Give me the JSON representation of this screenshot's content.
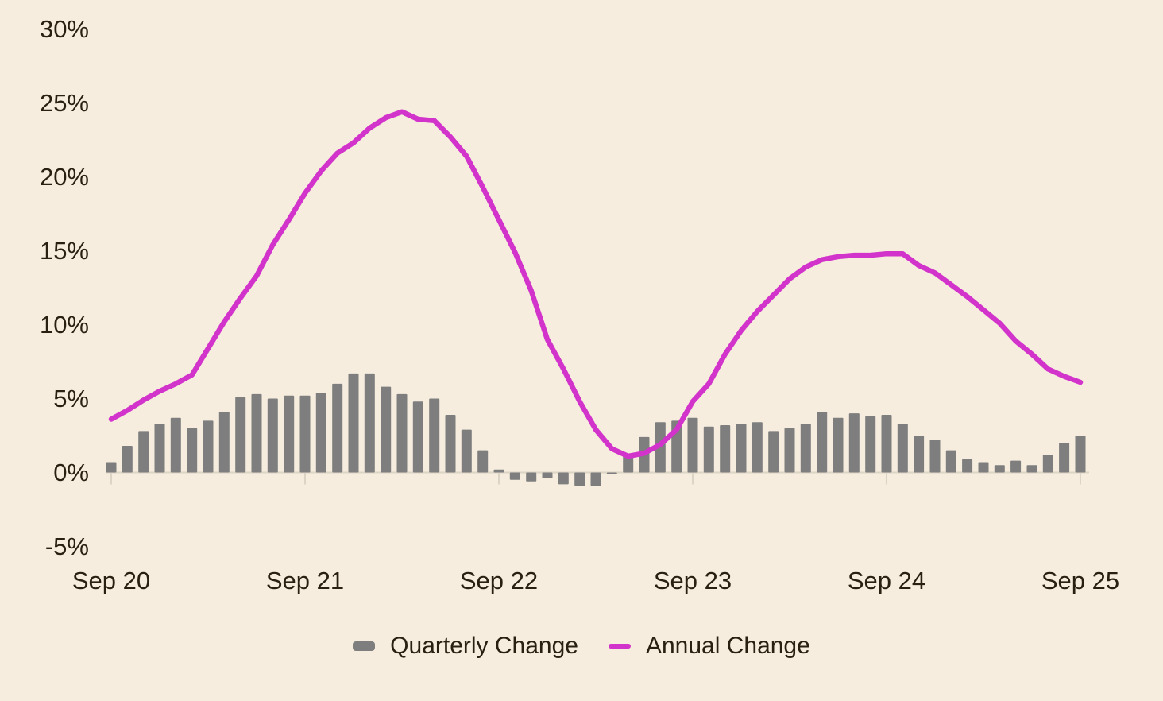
{
  "chart_data": {
    "type": "bar+line combo",
    "title": "",
    "x_axis": {
      "tick_labels": [
        "Sep 20",
        "Sep 21",
        "Sep 22",
        "Sep 23",
        "Sep 24",
        "Sep 25"
      ],
      "points_per_tick_interval": 12,
      "note": "61 monthly data points from Sep 2020 to Sep 2025"
    },
    "y_axis": {
      "tick_labels": [
        "30%",
        "25%",
        "20%",
        "15%",
        "10%",
        "5%",
        "0%",
        "-5%"
      ],
      "tick_values": [
        30,
        25,
        20,
        15,
        10,
        5,
        0,
        -5
      ],
      "unit": "%",
      "ylim": [
        -5,
        30
      ],
      "grid": "off"
    },
    "series": [
      {
        "name": "Quarterly Change",
        "type": "bar",
        "color": "#7e7e7e",
        "values": [
          0.7,
          1.8,
          2.8,
          3.3,
          3.7,
          3.0,
          3.5,
          4.1,
          5.1,
          5.3,
          5.0,
          5.2,
          5.2,
          5.4,
          6.0,
          6.7,
          6.7,
          5.8,
          5.3,
          4.8,
          5.0,
          3.9,
          2.9,
          1.5,
          0.2,
          -0.5,
          -0.6,
          -0.4,
          -0.8,
          -0.9,
          -0.9,
          -0.1,
          1.2,
          2.4,
          3.4,
          3.5,
          3.7,
          3.1,
          3.2,
          3.3,
          3.4,
          2.8,
          3.0,
          3.3,
          4.1,
          3.7,
          4.0,
          3.8,
          3.9,
          3.3,
          2.5,
          2.2,
          1.5,
          0.9,
          0.7,
          0.5,
          0.8,
          0.5,
          1.2,
          2.0,
          2.5
        ]
      },
      {
        "name": "Annual Change",
        "type": "line",
        "color": "#d233cb",
        "values": [
          3.6,
          4.2,
          4.9,
          5.5,
          6.0,
          6.6,
          8.4,
          10.2,
          11.8,
          13.3,
          15.4,
          17.1,
          18.9,
          20.4,
          21.6,
          22.3,
          23.3,
          24.0,
          24.4,
          23.9,
          23.8,
          22.7,
          21.4,
          19.3,
          17.1,
          14.9,
          12.3,
          9.0,
          7.0,
          4.8,
          2.9,
          1.6,
          1.1,
          1.3,
          1.9,
          2.9,
          4.8,
          6.0,
          8.0,
          9.6,
          10.9,
          12.0,
          13.1,
          13.9,
          14.4,
          14.6,
          14.7,
          14.7,
          14.8,
          14.8,
          14.0,
          13.5,
          12.7,
          11.9,
          11.0,
          10.1,
          8.9,
          8.0,
          7.0,
          6.5,
          6.1
        ]
      }
    ],
    "legend_position": "bottom-center"
  },
  "legend": {
    "items": [
      {
        "label": "Quarterly Change",
        "swatch": "bar",
        "color": "#7e7e7e"
      },
      {
        "label": "Annual Change",
        "swatch": "line",
        "color": "#d233cb"
      }
    ]
  },
  "colors": {
    "background": "#f6edde",
    "bar": "#7e7e7e",
    "line": "#d233cb",
    "text": "#2a2012",
    "axis": "#dcd4c5"
  }
}
